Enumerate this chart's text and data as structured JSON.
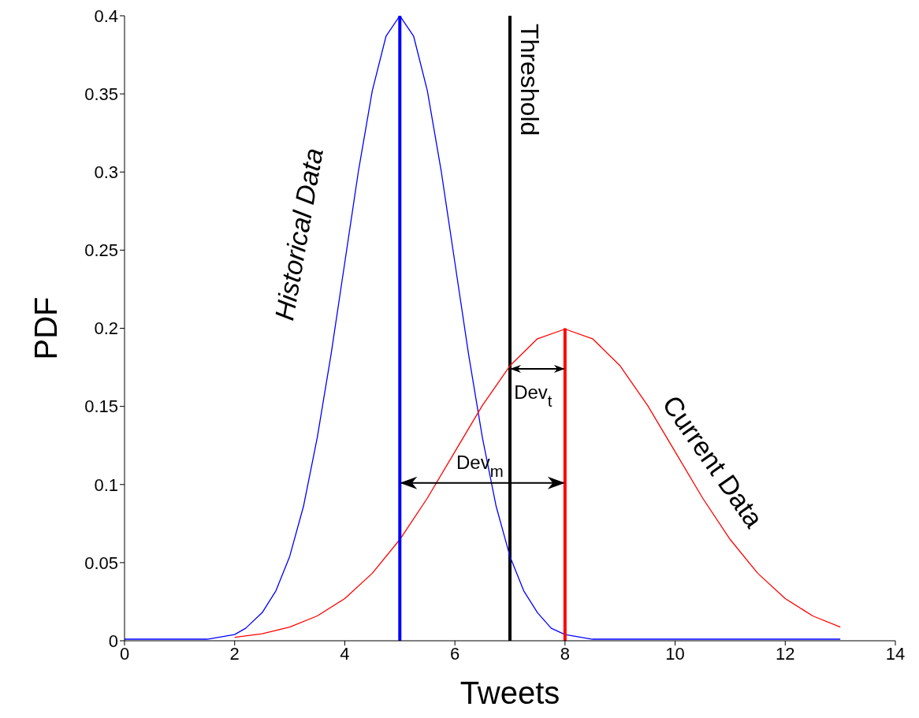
{
  "chart_data": {
    "type": "line",
    "xlabel": "Tweets",
    "ylabel": "PDF",
    "xlim": [
      0,
      14
    ],
    "xticks": [
      0,
      2,
      4,
      6,
      8,
      10,
      12,
      14
    ],
    "ylim": [
      0,
      0.4
    ],
    "yticks": [
      0,
      0.05,
      0.1,
      0.15,
      0.2,
      0.25,
      0.3,
      0.35,
      0.4
    ],
    "marker": "none",
    "line_style": "solid",
    "series": [
      {
        "color": "#0000ff",
        "x": [
          0,
          1,
          1.5,
          2,
          2.2,
          2.5,
          2.75,
          3,
          3.25,
          3.5,
          3.75,
          4,
          4.25,
          4.5,
          4.75,
          5,
          5.25,
          5.5,
          5.75,
          6,
          6.25,
          6.5,
          6.75,
          7,
          7.25,
          7.5,
          7.75,
          8,
          8.5,
          9,
          10,
          11,
          12,
          13
        ],
        "values": [
          0.001,
          0.001,
          0.001,
          0.004,
          0.008,
          0.018,
          0.032,
          0.054,
          0.086,
          0.13,
          0.183,
          0.242,
          0.301,
          0.352,
          0.387,
          0.4,
          0.387,
          0.352,
          0.301,
          0.242,
          0.183,
          0.13,
          0.086,
          0.054,
          0.032,
          0.018,
          0.008,
          0.004,
          0.001,
          0.001,
          0.001,
          0.001,
          0.001,
          0.001
        ]
      },
      {
        "color": "#ff0000",
        "x": [
          2,
          2.5,
          3,
          3.5,
          4,
          4.5,
          5,
          5.5,
          6,
          6.5,
          7,
          7.5,
          8,
          8.5,
          9,
          9.5,
          10,
          10.5,
          11,
          11.5,
          12,
          12.5,
          13
        ],
        "values": [
          0.0022,
          0.0045,
          0.0088,
          0.0159,
          0.027,
          0.0432,
          0.0648,
          0.0913,
          0.121,
          0.1506,
          0.176,
          0.1933,
          0.1995,
          0.1933,
          0.176,
          0.1506,
          0.121,
          0.0913,
          0.0648,
          0.0432,
          0.027,
          0.0159,
          0.0088
        ]
      },
      {
        "color": "#0000ff",
        "x": [
          5,
          5
        ],
        "values": [
          0,
          0.4
        ]
      },
      {
        "color": "#ff0000",
        "x": [
          8,
          8
        ],
        "values": [
          0,
          0.2
        ]
      }
    ],
    "ref_lines": [
      {
        "axis": "x",
        "value": 7,
        "label": "Threshold",
        "color": "#000000"
      }
    ],
    "annotations": [
      "Historical Data",
      "Current Data",
      "Dev$_{t}$",
      "Dev$_{m}$"
    ]
  }
}
